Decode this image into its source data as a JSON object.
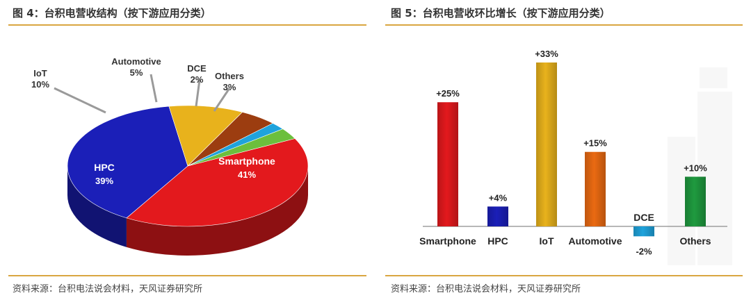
{
  "left_panel": {
    "title": "图 4：台积电营收结构（按下游应用分类）",
    "source": "资料来源：台积电法说会材料，天风证券研究所"
  },
  "right_panel": {
    "title": "图 5：台积电营收环比增长（按下游应用分类）",
    "source": "资料来源：台积电法说会材料，天风证券研究所"
  },
  "colors": {
    "accent_rule": "#d9a640",
    "smartphone": "#e3191d",
    "hpc": "#1b1fb8",
    "iot": "#e8b21c",
    "automotive": "#9c3d10",
    "dce": "#1fa3dc",
    "others": "#6cbf3c",
    "bar_automotive": "#ea6a12",
    "bar_others": "#1f9a3f"
  },
  "chart_data": [
    {
      "type": "pie",
      "categories": [
        "Smartphone",
        "HPC",
        "IoT",
        "Automotive",
        "DCE",
        "Others"
      ],
      "values": [
        41,
        39,
        10,
        5,
        2,
        3
      ],
      "value_labels": [
        "41%",
        "39%",
        "10%",
        "5%",
        "2%",
        "3%"
      ]
    },
    {
      "type": "bar",
      "categories": [
        "Smartphone",
        "HPC",
        "IoT",
        "Automotive",
        "DCE",
        "Others"
      ],
      "values": [
        25,
        4,
        33,
        15,
        -2,
        10
      ],
      "value_labels": [
        "+25%",
        "+4%",
        "+33%",
        "+15%",
        "-2%",
        "+10%"
      ]
    }
  ]
}
